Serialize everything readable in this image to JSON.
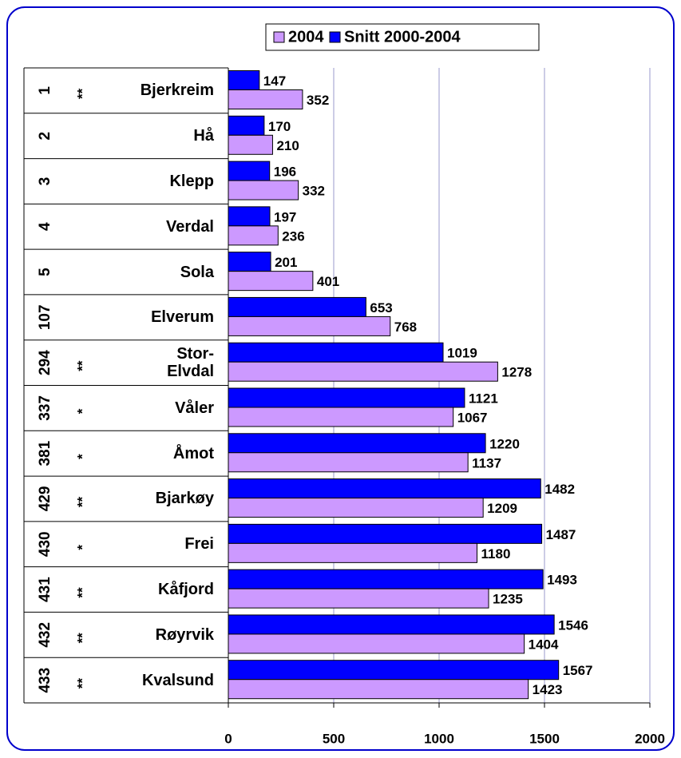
{
  "chart_data": {
    "type": "bar",
    "orientation": "horizontal",
    "ranks": [
      "1",
      "2",
      "3",
      "4",
      "5",
      "107",
      "294",
      "337",
      "381",
      "429",
      "430",
      "431",
      "432",
      "433"
    ],
    "marks": [
      "**",
      null,
      null,
      null,
      null,
      null,
      "**",
      "*",
      "*",
      "**",
      "*",
      "**",
      "**",
      "**"
    ],
    "categories": [
      "Bjerkreim",
      "Hå",
      "Klepp",
      "Verdal",
      "Sola",
      "Elverum",
      "Stor-Elvdal",
      "Våler",
      "Åmot",
      "Bjarkøy",
      "Frei",
      "Kåfjord",
      "Røyrvik",
      "Kvalsund"
    ],
    "series": [
      {
        "name": "2004",
        "color": "#cc99ff",
        "values": [
          352,
          210,
          332,
          236,
          401,
          768,
          1278,
          1067,
          1137,
          1209,
          1180,
          1235,
          1404,
          1423
        ]
      },
      {
        "name": "Snitt 2000-2004",
        "color": "#0000ff",
        "values": [
          147,
          170,
          196,
          197,
          201,
          653,
          1019,
          1121,
          1220,
          1482,
          1487,
          1493,
          1546,
          1567
        ]
      }
    ],
    "xlim": [
      0,
      2000
    ],
    "xticks": [
      0,
      500,
      1000,
      1500,
      2000
    ],
    "grid": true,
    "legend": "top"
  }
}
